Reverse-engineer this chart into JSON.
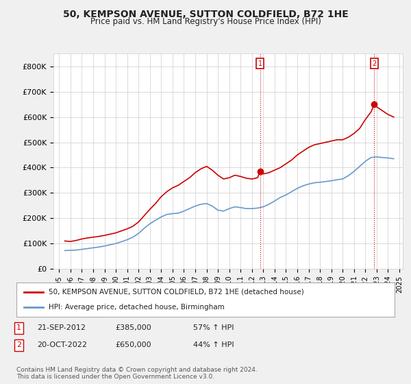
{
  "title": "50, KEMPSON AVENUE, SUTTON COLDFIELD, B72 1HE",
  "subtitle": "Price paid vs. HM Land Registry's House Price Index (HPI)",
  "background_color": "#f0f0f0",
  "plot_bg_color": "#ffffff",
  "ylim": [
    0,
    850000
  ],
  "yticks": [
    0,
    100000,
    200000,
    300000,
    400000,
    500000,
    600000,
    700000,
    800000
  ],
  "ytick_labels": [
    "£0",
    "£100K",
    "£200K",
    "£300K",
    "£400K",
    "£500K",
    "£600K",
    "£700K",
    "£800K"
  ],
  "x_start_year": 1995,
  "x_end_year": 2025,
  "xtick_years": [
    1995,
    1996,
    1997,
    1998,
    1999,
    2000,
    2001,
    2002,
    2003,
    2004,
    2005,
    2006,
    2007,
    2008,
    2009,
    2010,
    2011,
    2012,
    2013,
    2014,
    2015,
    2016,
    2017,
    2018,
    2019,
    2020,
    2021,
    2022,
    2023,
    2024,
    2025
  ],
  "house_color": "#cc0000",
  "hpi_color": "#6699cc",
  "vline_color": "#cc0000",
  "vline_style": ":",
  "point1_x": 2012.72,
  "point1_y": 385000,
  "point2_x": 2022.79,
  "point2_y": 650000,
  "legend_house": "50, KEMPSON AVENUE, SUTTON COLDFIELD, B72 1HE (detached house)",
  "legend_hpi": "HPI: Average price, detached house, Birmingham",
  "ann1_date": "21-SEP-2012",
  "ann1_price": "£385,000",
  "ann1_hpi": "57% ↑ HPI",
  "ann2_date": "20-OCT-2022",
  "ann2_price": "£650,000",
  "ann2_hpi": "44% ↑ HPI",
  "footer": "Contains HM Land Registry data © Crown copyright and database right 2024.\nThis data is licensed under the Open Government Licence v3.0.",
  "house_prices": [
    [
      1995.5,
      110000
    ],
    [
      1996.0,
      108000
    ],
    [
      1996.5,
      112000
    ],
    [
      1997.0,
      118000
    ],
    [
      1997.5,
      122000
    ],
    [
      1998.0,
      125000
    ],
    [
      1998.5,
      128000
    ],
    [
      1999.0,
      132000
    ],
    [
      1999.5,
      137000
    ],
    [
      2000.0,
      142000
    ],
    [
      2000.5,
      150000
    ],
    [
      2001.0,
      158000
    ],
    [
      2001.5,
      168000
    ],
    [
      2002.0,
      185000
    ],
    [
      2002.5,
      210000
    ],
    [
      2003.0,
      235000
    ],
    [
      2003.5,
      258000
    ],
    [
      2004.0,
      285000
    ],
    [
      2004.5,
      305000
    ],
    [
      2005.0,
      320000
    ],
    [
      2005.5,
      330000
    ],
    [
      2006.0,
      345000
    ],
    [
      2006.5,
      360000
    ],
    [
      2007.0,
      380000
    ],
    [
      2007.5,
      395000
    ],
    [
      2008.0,
      405000
    ],
    [
      2008.5,
      390000
    ],
    [
      2009.0,
      370000
    ],
    [
      2009.5,
      355000
    ],
    [
      2010.0,
      360000
    ],
    [
      2010.5,
      370000
    ],
    [
      2011.0,
      365000
    ],
    [
      2011.5,
      358000
    ],
    [
      2012.0,
      355000
    ],
    [
      2012.5,
      360000
    ],
    [
      2012.72,
      385000
    ],
    [
      2013.0,
      375000
    ],
    [
      2013.5,
      380000
    ],
    [
      2014.0,
      390000
    ],
    [
      2014.5,
      400000
    ],
    [
      2015.0,
      415000
    ],
    [
      2015.5,
      430000
    ],
    [
      2016.0,
      450000
    ],
    [
      2016.5,
      465000
    ],
    [
      2017.0,
      480000
    ],
    [
      2017.5,
      490000
    ],
    [
      2018.0,
      495000
    ],
    [
      2018.5,
      500000
    ],
    [
      2019.0,
      505000
    ],
    [
      2019.5,
      510000
    ],
    [
      2020.0,
      510000
    ],
    [
      2020.5,
      520000
    ],
    [
      2021.0,
      535000
    ],
    [
      2021.5,
      555000
    ],
    [
      2022.0,
      590000
    ],
    [
      2022.5,
      620000
    ],
    [
      2022.79,
      650000
    ],
    [
      2023.0,
      640000
    ],
    [
      2023.5,
      625000
    ],
    [
      2024.0,
      610000
    ],
    [
      2024.5,
      600000
    ]
  ],
  "hpi_prices": [
    [
      1995.5,
      72000
    ],
    [
      1996.0,
      73000
    ],
    [
      1996.5,
      74000
    ],
    [
      1997.0,
      77000
    ],
    [
      1997.5,
      80000
    ],
    [
      1998.0,
      83000
    ],
    [
      1998.5,
      86000
    ],
    [
      1999.0,
      90000
    ],
    [
      1999.5,
      95000
    ],
    [
      2000.0,
      100000
    ],
    [
      2000.5,
      107000
    ],
    [
      2001.0,
      115000
    ],
    [
      2001.5,
      125000
    ],
    [
      2002.0,
      140000
    ],
    [
      2002.5,
      160000
    ],
    [
      2003.0,
      178000
    ],
    [
      2003.5,
      192000
    ],
    [
      2004.0,
      205000
    ],
    [
      2004.5,
      215000
    ],
    [
      2005.0,
      218000
    ],
    [
      2005.5,
      220000
    ],
    [
      2006.0,
      228000
    ],
    [
      2006.5,
      238000
    ],
    [
      2007.0,
      248000
    ],
    [
      2007.5,
      255000
    ],
    [
      2008.0,
      258000
    ],
    [
      2008.5,
      248000
    ],
    [
      2009.0,
      232000
    ],
    [
      2009.5,
      228000
    ],
    [
      2010.0,
      238000
    ],
    [
      2010.5,
      245000
    ],
    [
      2011.0,
      242000
    ],
    [
      2011.5,
      238000
    ],
    [
      2012.0,
      238000
    ],
    [
      2012.5,
      240000
    ],
    [
      2013.0,
      245000
    ],
    [
      2013.5,
      255000
    ],
    [
      2014.0,
      268000
    ],
    [
      2014.5,
      282000
    ],
    [
      2015.0,
      292000
    ],
    [
      2015.5,
      305000
    ],
    [
      2016.0,
      318000
    ],
    [
      2016.5,
      328000
    ],
    [
      2017.0,
      335000
    ],
    [
      2017.5,
      340000
    ],
    [
      2018.0,
      342000
    ],
    [
      2018.5,
      345000
    ],
    [
      2019.0,
      348000
    ],
    [
      2019.5,
      352000
    ],
    [
      2020.0,
      355000
    ],
    [
      2020.5,
      368000
    ],
    [
      2021.0,
      385000
    ],
    [
      2021.5,
      405000
    ],
    [
      2022.0,
      425000
    ],
    [
      2022.5,
      440000
    ],
    [
      2023.0,
      442000
    ],
    [
      2023.5,
      440000
    ],
    [
      2024.0,
      438000
    ],
    [
      2024.5,
      435000
    ]
  ]
}
